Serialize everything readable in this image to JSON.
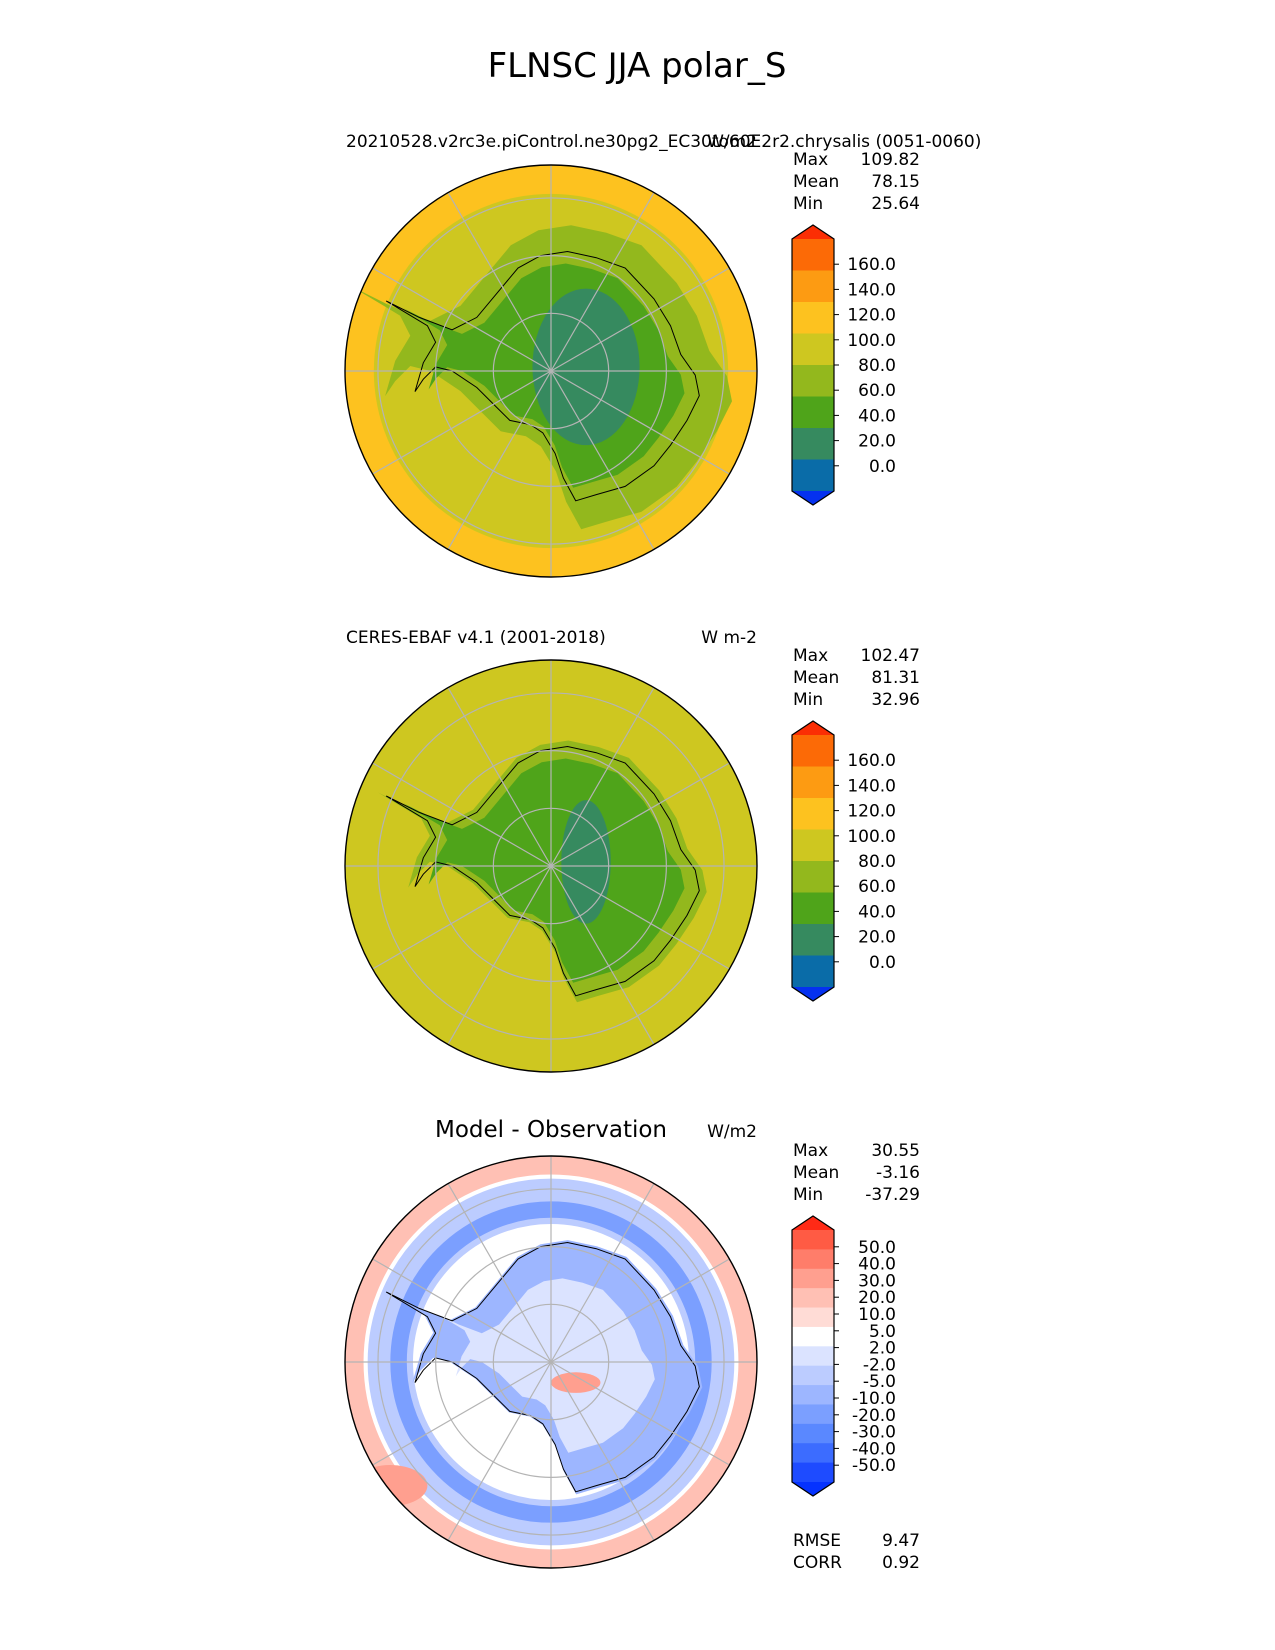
{
  "figure": {
    "title": "FLNSC JJA polar_S"
  },
  "chart_data": [
    {
      "type": "heatmap",
      "projection": "south-polar-stereographic",
      "title_left": "20210528.v2rc3e.piControl.ne30pg2_EC30to60E2r2.chrysalis (0051-0060)",
      "title_right": "W/m2",
      "stats": [
        {
          "label": "Max",
          "value": "109.82"
        },
        {
          "label": "Mean",
          "value": "78.15"
        },
        {
          "label": "Min",
          "value": "25.64"
        }
      ],
      "colorbar": {
        "ticks": [
          "160.0",
          "140.0",
          "120.0",
          "100.0",
          "80.0",
          "60.0",
          "40.0",
          "20.0",
          "0.0"
        ],
        "levels": [
          0,
          20,
          40,
          60,
          80,
          100,
          120,
          140,
          160
        ],
        "colors": [
          "#0531f0",
          "#0a6ca8",
          "#368a5f",
          "#4fa41a",
          "#93b81d",
          "#cec720",
          "#fdc21f",
          "#fd9b12",
          "#fc6a06",
          "#fb2e04"
        ],
        "extend": "both"
      },
      "field_summary": {
        "ocean_outer": "100-120",
        "ocean_mid": "80-100",
        "coast": "60-80",
        "east_plateau": "20-40",
        "interior": "40-60"
      }
    },
    {
      "type": "heatmap",
      "projection": "south-polar-stereographic",
      "title_left": "CERES-EBAF v4.1 (2001-2018)",
      "title_right": "W m-2",
      "stats": [
        {
          "label": "Max",
          "value": "102.47"
        },
        {
          "label": "Mean",
          "value": "81.31"
        },
        {
          "label": "Min",
          "value": "32.96"
        }
      ],
      "colorbar": {
        "ticks": [
          "160.0",
          "140.0",
          "120.0",
          "100.0",
          "80.0",
          "60.0",
          "40.0",
          "20.0",
          "0.0"
        ],
        "levels": [
          0,
          20,
          40,
          60,
          80,
          100,
          120,
          140,
          160
        ],
        "colors": [
          "#0531f0",
          "#0a6ca8",
          "#368a5f",
          "#4fa41a",
          "#93b81d",
          "#cec720",
          "#fdc21f",
          "#fd9b12",
          "#fc6a06",
          "#fb2e04"
        ],
        "extend": "both"
      },
      "field_summary": {
        "ocean": "80-100",
        "coast": "60-80",
        "interior": "40-60",
        "east_plateau": "20-40"
      }
    },
    {
      "type": "heatmap",
      "projection": "south-polar-stereographic",
      "title_center": "Model - Observation",
      "title_right": "W/m2",
      "stats": [
        {
          "label": "Max",
          "value": "30.55"
        },
        {
          "label": "Mean",
          "value": "-3.16"
        },
        {
          "label": "Min",
          "value": "-37.29"
        }
      ],
      "colorbar": {
        "ticks": [
          "50.0",
          "40.0",
          "30.0",
          "20.0",
          "10.0",
          "5.0",
          "2.0",
          "-2.0",
          "-5.0",
          "-10.0",
          "-20.0",
          "-30.0",
          "-40.0",
          "-50.0"
        ],
        "levels": [
          -50,
          -40,
          -30,
          -20,
          -10,
          -5,
          -2,
          2,
          5,
          10,
          20,
          30,
          40,
          50
        ],
        "colors": [
          "#0532ff",
          "#1e4bff",
          "#3c6cff",
          "#5a88ff",
          "#7b9fff",
          "#9db6ff",
          "#bcccff",
          "#dbe3ff",
          "#ffffff",
          "#ffdcd6",
          "#ffc0b4",
          "#ff9f8f",
          "#ff7d6a",
          "#ff5b44",
          "#ff2a16"
        ],
        "extend": "both"
      },
      "metrics": [
        {
          "label": "RMSE",
          "value": "9.47"
        },
        {
          "label": "CORR",
          "value": "0.92"
        }
      ]
    }
  ]
}
